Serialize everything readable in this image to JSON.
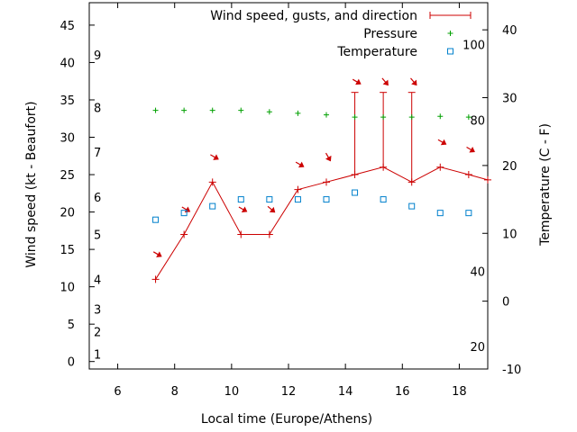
{
  "chart_data": {
    "type": "line",
    "xlabel": "Local time (Europe/Athens)",
    "ylabel": "Wind speed (kt - Beaufort)",
    "y2label": "Temperature (C - F)",
    "x_range": [
      5,
      19
    ],
    "x_ticks": [
      "6",
      "8",
      "10",
      "12",
      "14",
      "16",
      "18"
    ],
    "y_range": [
      -1,
      48
    ],
    "y_ticks": [
      "0",
      "5",
      "10",
      "15",
      "20",
      "25",
      "30",
      "35",
      "40",
      "45"
    ],
    "y2_range": [
      -10,
      44
    ],
    "y2_ticks": [
      "-10",
      "0",
      "10",
      "20",
      "30",
      "40"
    ],
    "beaufort_scale": [
      {
        "label": "1",
        "kt": 1
      },
      {
        "label": "2",
        "kt": 4
      },
      {
        "label": "3",
        "kt": 7
      },
      {
        "label": "4",
        "kt": 11
      },
      {
        "label": "5",
        "kt": 17
      },
      {
        "label": "6",
        "kt": 22
      },
      {
        "label": "7",
        "kt": 28
      },
      {
        "label": "8",
        "kt": 34
      },
      {
        "label": "9",
        "kt": 41
      }
    ],
    "fahrenheit_labels": [
      {
        "label": "20",
        "celsius": -6.7
      },
      {
        "label": "40",
        "celsius": 4.4
      },
      {
        "label": "80",
        "celsius": 26.7
      },
      {
        "label": "100",
        "celsius": 37.8
      }
    ],
    "legend": {
      "placement": "top-right",
      "entries": [
        "Wind speed, gusts, and direction",
        "Pressure",
        "Temperature"
      ]
    },
    "series": [
      {
        "name": "Wind speed, gusts, and direction",
        "color": "#cc0000",
        "x": [
          7.33,
          8.33,
          9.33,
          10.33,
          11.33,
          12.33,
          13.33,
          14.33,
          15.33,
          16.33,
          17.33,
          18.33,
          19.0
        ],
        "values": [
          11,
          17,
          24,
          17,
          17,
          23,
          24,
          25,
          26,
          24,
          26,
          25,
          24.3
        ],
        "gusts": [
          null,
          null,
          null,
          null,
          null,
          null,
          null,
          36,
          36,
          36,
          null,
          null,
          null
        ],
        "direction_deg": [
          300,
          300,
          300,
          300,
          310,
          300,
          330,
          300,
          320,
          320,
          300,
          300,
          null
        ]
      },
      {
        "name": "Pressure",
        "color": "#00a000",
        "x": [
          7.33,
          8.33,
          9.33,
          10.33,
          11.33,
          12.33,
          13.33,
          14.33,
          15.33,
          16.33,
          17.33,
          18.33
        ],
        "values": [
          33.6,
          33.6,
          33.6,
          33.6,
          33.4,
          33.2,
          33.0,
          32.7,
          32.7,
          32.7,
          32.8,
          32.7
        ]
      },
      {
        "name": "Temperature",
        "color": "#0080cc",
        "x": [
          7.33,
          8.33,
          9.33,
          10.33,
          11.33,
          12.33,
          13.33,
          14.33,
          15.33,
          16.33,
          17.33,
          18.33
        ],
        "values": [
          12,
          13,
          14,
          15,
          15,
          15,
          15,
          16,
          15,
          14,
          13,
          13
        ]
      }
    ],
    "grid": false
  }
}
